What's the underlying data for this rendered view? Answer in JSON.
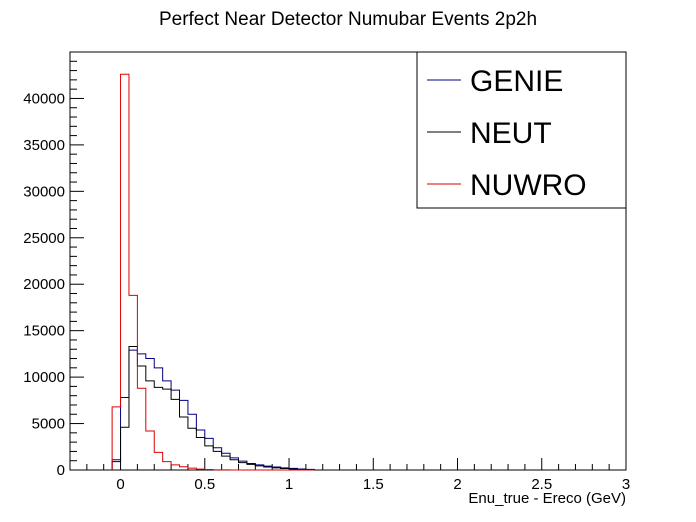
{
  "chart_data": {
    "type": "histogram",
    "title": "Perfect Near Detector Numubar Events 2p2h",
    "xlabel": "Enu_true - Ereco (GeV)",
    "ylabel": "",
    "xlim": [
      -0.3,
      3.0
    ],
    "ylim": [
      0,
      45000
    ],
    "x_ticks": [
      0,
      0.5,
      1,
      1.5,
      2,
      2.5,
      3
    ],
    "x_tick_labels": [
      "0",
      "0.5",
      "1",
      "1.5",
      "2",
      "2.5",
      "3"
    ],
    "y_ticks": [
      0,
      5000,
      10000,
      15000,
      20000,
      25000,
      30000,
      35000,
      40000
    ],
    "y_tick_labels": [
      "0",
      "5000",
      "10000",
      "15000",
      "20000",
      "25000",
      "30000",
      "35000",
      "40000"
    ],
    "bin_edges": [
      -0.05,
      0.0,
      0.05,
      0.1,
      0.15,
      0.2,
      0.25,
      0.3,
      0.35,
      0.4,
      0.45,
      0.5,
      0.55,
      0.6,
      0.65,
      0.7,
      0.75,
      0.8,
      0.85,
      0.9,
      0.95,
      1.0,
      1.05,
      1.1,
      1.15
    ],
    "series": [
      {
        "name": "GENIE",
        "color": "#000080",
        "values": [
          1100,
          7800,
          12900,
          12500,
          12000,
          11000,
          9600,
          8600,
          7500,
          6000,
          4300,
          3400,
          2400,
          1800,
          1300,
          950,
          700,
          550,
          420,
          320,
          230,
          170,
          110,
          70
        ]
      },
      {
        "name": "NEUT",
        "color": "#000000",
        "values": [
          900,
          4600,
          13300,
          11200,
          9600,
          8900,
          8700,
          7600,
          5700,
          4500,
          3500,
          2600,
          2000,
          1500,
          1100,
          800,
          600,
          450,
          320,
          230,
          160,
          110,
          70,
          40
        ]
      },
      {
        "name": "NUWRO",
        "color": "#dd0000",
        "values": [
          6800,
          42600,
          18800,
          8800,
          4200,
          1900,
          900,
          550,
          350,
          200,
          100,
          50,
          20,
          10,
          0,
          0,
          0,
          0,
          0,
          0,
          0,
          0,
          0,
          0
        ]
      }
    ],
    "legend_position": "top-right"
  }
}
